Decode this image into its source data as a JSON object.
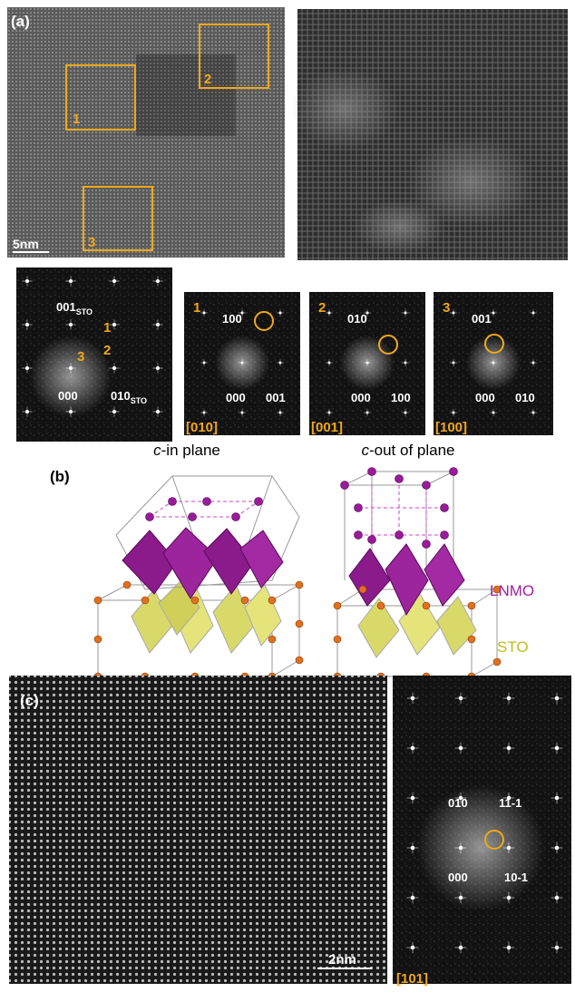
{
  "panel_a": {
    "label": "(a)",
    "scale_bar": "5nm",
    "boxes": [
      "1",
      "2",
      "3"
    ],
    "fft": {
      "spot_001": {
        "text": "001",
        "sub": "STO"
      },
      "spot_010": {
        "text": "010",
        "sub": "STO"
      },
      "spot_000": "000",
      "regions": [
        "1",
        "2",
        "3"
      ]
    },
    "insets": [
      {
        "number": "1",
        "top": "100",
        "center": "000",
        "right": "001",
        "zone": "[010]"
      },
      {
        "number": "2",
        "top": "010",
        "center": "000",
        "right": "100",
        "zone": "[001]"
      },
      {
        "number": "3",
        "top": "001",
        "center": "000",
        "right": "010",
        "zone": "[100]"
      }
    ]
  },
  "panel_b": {
    "label": "(b)",
    "left_title": {
      "italic": "c",
      "rest": "-in plane"
    },
    "right_title": {
      "italic": "c",
      "rest": "-out of plane"
    },
    "lnmo": "LNMO",
    "sto": "STO"
  },
  "panel_c": {
    "label": "(c)",
    "scale_bar": "2nm",
    "fft": {
      "top_left": "010",
      "top_right": "11-1",
      "bottom_left": "000",
      "bottom_right": "10-1",
      "zone": "[101]"
    }
  }
}
